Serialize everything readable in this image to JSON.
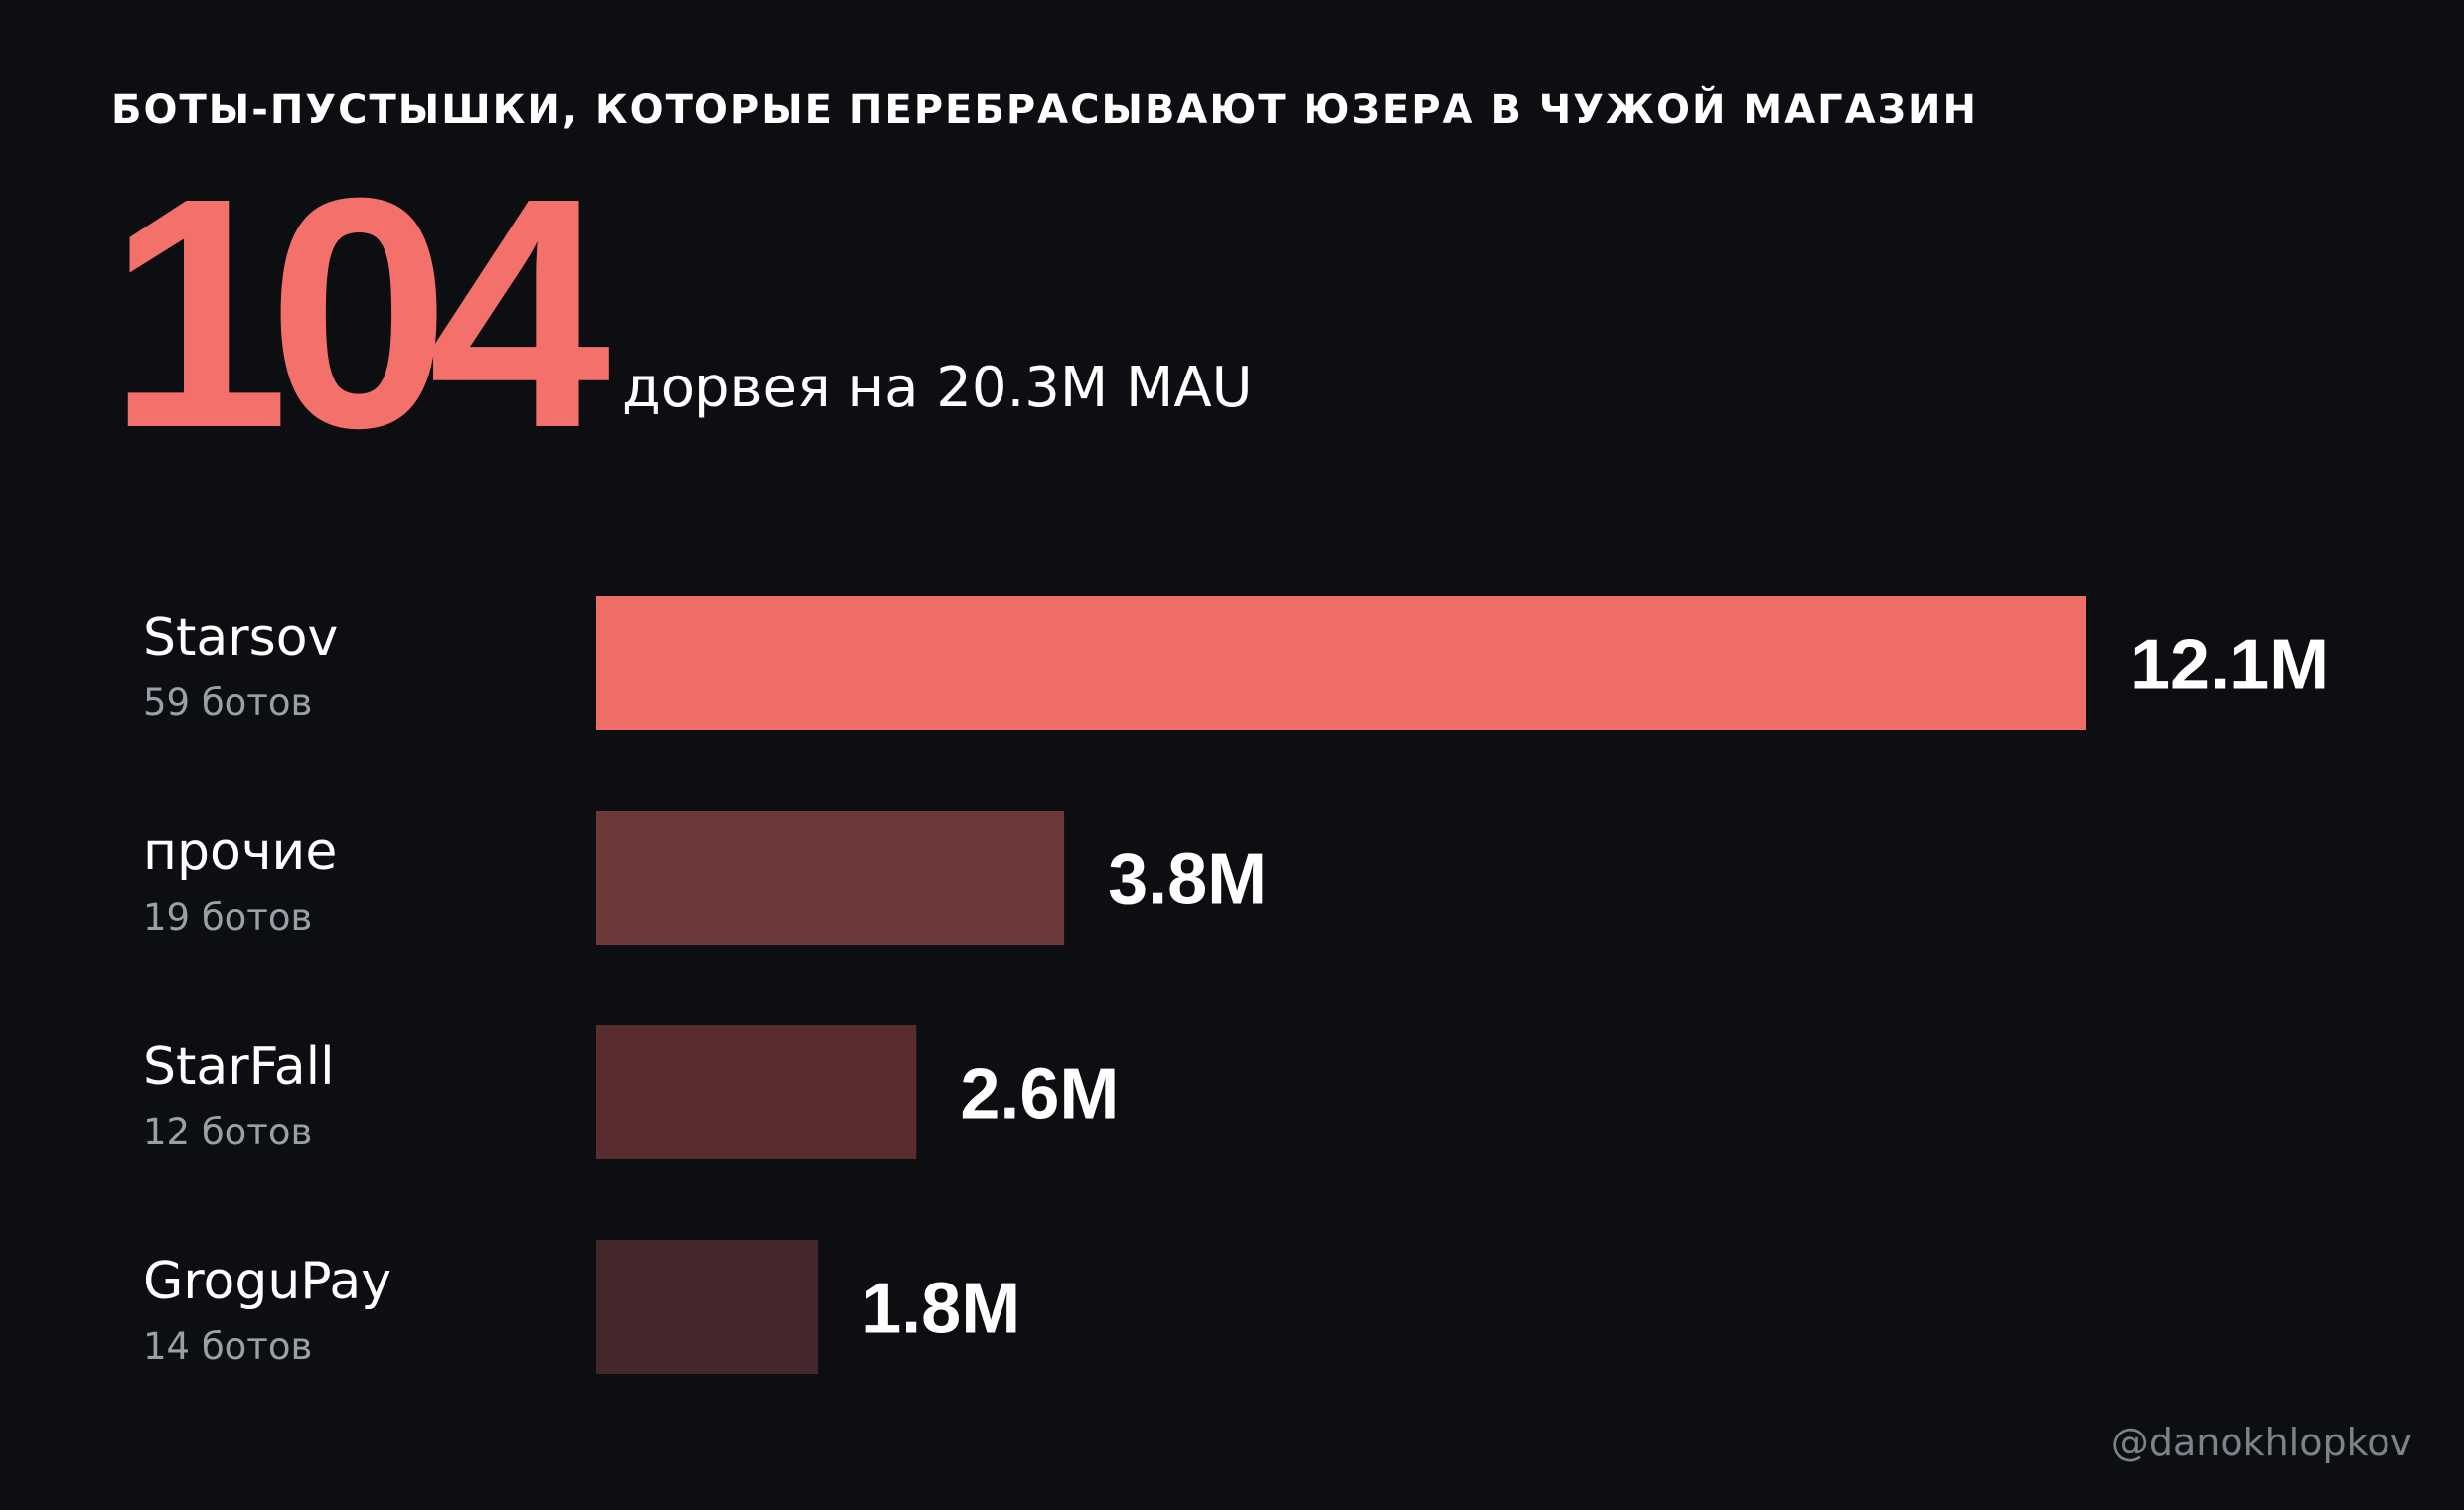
{
  "header": {
    "title": "БОТЫ-ПУСТЫШКИ, КОТОРЫЕ ПЕРЕБРАСЫВАЮТ ЮЗЕРА В ЧУЖОЙ МАГАЗИН",
    "big_number": "104",
    "big_caption": "дорвея на 20.3M MAU"
  },
  "rows": [
    {
      "name": "Starsov",
      "sub": "59 ботов"
    },
    {
      "name": "прочие",
      "sub": "19 ботов"
    },
    {
      "name": "StarFall",
      "sub": "12 ботов"
    },
    {
      "name": "GroguPay",
      "sub": "14 ботов"
    }
  ],
  "chart_data": {
    "type": "bar",
    "orientation": "horizontal",
    "categories": [
      "Starsov",
      "прочие",
      "StarFall",
      "GroguPay"
    ],
    "values": [
      12.1,
      3.8,
      2.6,
      1.8
    ],
    "labels": [
      "12.1M",
      "3.8M",
      "2.6M",
      "1.8M"
    ],
    "colors": [
      "#f06e68",
      "#6e3939",
      "#5a2c2f",
      "#45262a"
    ],
    "grid": false,
    "legend": "none"
  },
  "footer": {
    "watermark": "@danokhlopkov"
  },
  "colors": {
    "background": "#0d0e12",
    "accent": "#f4716b",
    "muted_text": "#9aa0a8"
  }
}
